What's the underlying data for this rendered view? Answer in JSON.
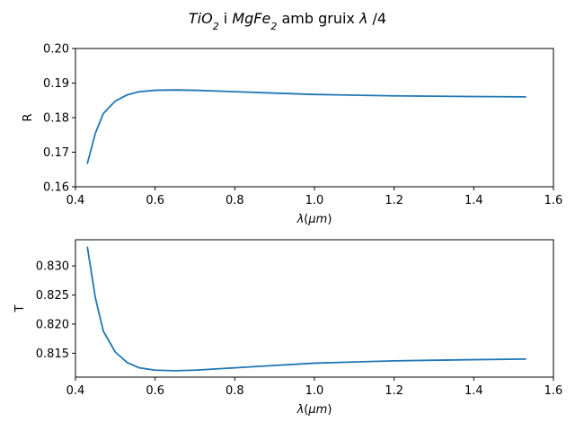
{
  "figure": {
    "suptitle_parts": [
      {
        "text": "TiO",
        "italic": true,
        "sub": false
      },
      {
        "text": "2",
        "italic": true,
        "sub": true
      },
      {
        "text": " i ",
        "italic": false,
        "sub": false
      },
      {
        "text": "MgFe",
        "italic": true,
        "sub": false
      },
      {
        "text": "2",
        "italic": true,
        "sub": true
      },
      {
        "text": " amb gruix ",
        "italic": false,
        "sub": false
      },
      {
        "text": "λ",
        "italic": true,
        "sub": false
      },
      {
        "text": " /4",
        "italic": false,
        "sub": false
      }
    ]
  },
  "chart_data": [
    {
      "type": "line",
      "ylabel": "R",
      "xlabel_parts": [
        {
          "text": "λ",
          "italic": true
        },
        {
          "text": "(",
          "italic": false
        },
        {
          "text": "μm",
          "italic": true
        },
        {
          "text": ")",
          "italic": false
        }
      ],
      "xlim": [
        0.4,
        1.6
      ],
      "ylim": [
        0.16,
        0.2
      ],
      "xticks": [
        "0.4",
        "0.6",
        "0.8",
        "1.0",
        "1.2",
        "1.4",
        "1.6"
      ],
      "yticks": [
        "0.16",
        "0.17",
        "0.18",
        "0.19",
        "0.20"
      ],
      "grid": false,
      "series": [
        {
          "color": "#1f77b4",
          "x": [
            0.43,
            0.45,
            0.47,
            0.5,
            0.53,
            0.56,
            0.6,
            0.65,
            0.7,
            0.8,
            0.9,
            1.0,
            1.1,
            1.2,
            1.3,
            1.4,
            1.53
          ],
          "y": [
            0.1668,
            0.1755,
            0.1812,
            0.1848,
            0.1866,
            0.1875,
            0.1879,
            0.188,
            0.1879,
            0.1875,
            0.1871,
            0.1867,
            0.1865,
            0.1863,
            0.1862,
            0.1861,
            0.186
          ]
        }
      ]
    },
    {
      "type": "line",
      "ylabel": "T",
      "xlabel_parts": [
        {
          "text": "λ",
          "italic": true
        },
        {
          "text": "(",
          "italic": false
        },
        {
          "text": "μm",
          "italic": true
        },
        {
          "text": ")",
          "italic": false
        }
      ],
      "xlim": [
        0.4,
        1.6
      ],
      "ylim": [
        0.8109,
        0.8345
      ],
      "xticks": [
        "0.4",
        "0.6",
        "0.8",
        "1.0",
        "1.2",
        "1.4",
        "1.6"
      ],
      "yticks": [
        "0.815",
        "0.820",
        "0.825",
        "0.830"
      ],
      "grid": false,
      "series": [
        {
          "color": "#1f77b4",
          "x": [
            0.43,
            0.45,
            0.47,
            0.5,
            0.53,
            0.56,
            0.6,
            0.65,
            0.7,
            0.8,
            0.9,
            1.0,
            1.1,
            1.2,
            1.3,
            1.4,
            1.53
          ],
          "y": [
            0.8332,
            0.8245,
            0.8188,
            0.8152,
            0.8134,
            0.8125,
            0.8121,
            0.812,
            0.8121,
            0.8125,
            0.8129,
            0.8133,
            0.8135,
            0.8137,
            0.8138,
            0.8139,
            0.814
          ]
        }
      ]
    }
  ]
}
